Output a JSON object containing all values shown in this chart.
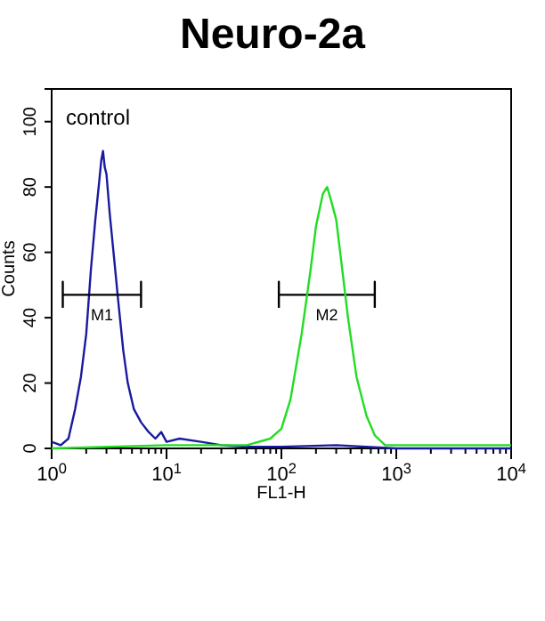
{
  "chart_data": {
    "type": "line",
    "title": "Neuro-2a",
    "xlabel": "FL1-H",
    "ylabel": "Counts",
    "log": "x",
    "grid": false,
    "marker": "none",
    "line_style": "solid",
    "xlim": [
      1,
      10000
    ],
    "ylim": [
      0,
      110
    ],
    "xticks": [
      {
        "value": 1,
        "label": "10$^{0}$"
      },
      {
        "value": 2,
        "label": null
      },
      {
        "value": 3,
        "label": null
      },
      {
        "value": 4,
        "label": null
      },
      {
        "value": 5,
        "label": null
      },
      {
        "value": 6,
        "label": null
      },
      {
        "value": 7,
        "label": null
      },
      {
        "value": 8,
        "label": null
      },
      {
        "value": 9,
        "label": null
      },
      {
        "value": 10,
        "label": "10$^{1}$"
      },
      {
        "value": 20,
        "label": null
      },
      {
        "value": 30,
        "label": null
      },
      {
        "value": 40,
        "label": null
      },
      {
        "value": 50,
        "label": null
      },
      {
        "value": 60,
        "label": null
      },
      {
        "value": 70,
        "label": null
      },
      {
        "value": 80,
        "label": null
      },
      {
        "value": 90,
        "label": null
      },
      {
        "value": 100,
        "label": "10$^{2}$"
      },
      {
        "value": 200,
        "label": null
      },
      {
        "value": 300,
        "label": null
      },
      {
        "value": 400,
        "label": null
      },
      {
        "value": 500,
        "label": null
      },
      {
        "value": 600,
        "label": null
      },
      {
        "value": 700,
        "label": null
      },
      {
        "value": 800,
        "label": null
      },
      {
        "value": 900,
        "label": null
      },
      {
        "value": 1000,
        "label": "10$^{3}$"
      },
      {
        "value": 2000,
        "label": null
      },
      {
        "value": 3000,
        "label": null
      },
      {
        "value": 4000,
        "label": null
      },
      {
        "value": 5000,
        "label": null
      },
      {
        "value": 6000,
        "label": null
      },
      {
        "value": 7000,
        "label": null
      },
      {
        "value": 8000,
        "label": null
      },
      {
        "value": 9000,
        "label": null
      },
      {
        "value": 10000,
        "label": "10$^{4}$"
      }
    ],
    "yticks": [
      0,
      20,
      40,
      60,
      80,
      100
    ],
    "series": [
      {
        "color": "#1a1aa0",
        "x": [
          1,
          1.2,
          1.4,
          1.6,
          1.8,
          2,
          2.2,
          2.4,
          2.6,
          2.7,
          2.8,
          2.9,
          3,
          3.2,
          3.5,
          3.8,
          4.2,
          4.6,
          5.2,
          6,
          7,
          8,
          9,
          10,
          13,
          20,
          30,
          50,
          100,
          300,
          1000,
          10000
        ],
        "values": [
          2,
          1,
          3,
          12,
          22,
          35,
          55,
          70,
          82,
          88,
          91,
          86,
          84,
          72,
          58,
          45,
          30,
          20,
          12,
          8,
          5,
          3,
          5,
          2,
          3,
          2,
          1,
          0.5,
          0.5,
          1,
          0,
          0
        ]
      },
      {
        "name": "M1",
        "color": "#000000",
        "x": [
          1.25,
          1.25,
          1.25,
          6,
          6,
          6
        ],
        "values": [
          43,
          51,
          47,
          47,
          51,
          43
        ]
      },
      {
        "name": "M2",
        "color": "#000000",
        "x": [
          95,
          95,
          95,
          650,
          650,
          650
        ],
        "values": [
          43,
          51,
          47,
          47,
          51,
          43
        ]
      },
      {
        "color": "#22dd22",
        "x": [
          1,
          10,
          50,
          80,
          100,
          120,
          150,
          180,
          200,
          230,
          250,
          270,
          300,
          330,
          380,
          450,
          550,
          650,
          800,
          1000,
          3000,
          10000
        ],
        "values": [
          0,
          1,
          1,
          3,
          6,
          15,
          35,
          55,
          68,
          78,
          80,
          76,
          70,
          58,
          40,
          22,
          10,
          4,
          1,
          1,
          1,
          1
        ]
      }
    ],
    "annotations": [
      "control"
    ]
  }
}
